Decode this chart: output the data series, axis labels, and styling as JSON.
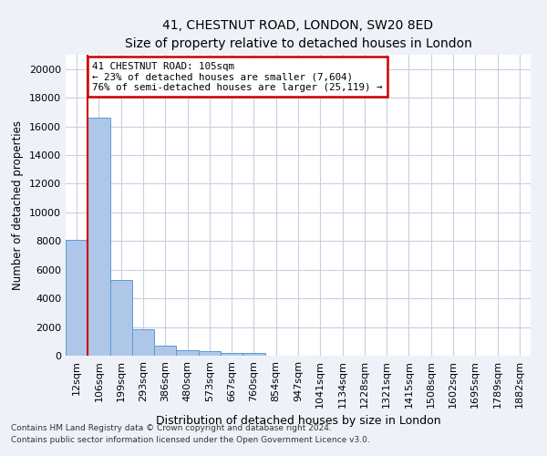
{
  "title": "41, CHESTNUT ROAD, LONDON, SW20 8ED",
  "subtitle": "Size of property relative to detached houses in London",
  "xlabel": "Distribution of detached houses by size in London",
  "ylabel": "Number of detached properties",
  "bar_labels": [
    "12sqm",
    "106sqm",
    "199sqm",
    "293sqm",
    "386sqm",
    "480sqm",
    "573sqm",
    "667sqm",
    "760sqm",
    "854sqm",
    "947sqm",
    "1041sqm",
    "1134sqm",
    "1228sqm",
    "1321sqm",
    "1415sqm",
    "1508sqm",
    "1602sqm",
    "1695sqm",
    "1789sqm",
    "1882sqm"
  ],
  "bar_values": [
    8100,
    16600,
    5300,
    1850,
    700,
    360,
    290,
    200,
    165,
    0,
    0,
    0,
    0,
    0,
    0,
    0,
    0,
    0,
    0,
    0,
    0
  ],
  "bar_color": "#aec6e8",
  "bar_edgecolor": "#5b9bd5",
  "annotation_text": "41 CHESTNUT ROAD: 105sqm\n← 23% of detached houses are smaller (7,604)\n76% of semi-detached houses are larger (25,119) →",
  "annotation_box_color": "#ffffff",
  "annotation_box_edgecolor": "#cc0000",
  "red_line_color": "#cc0000",
  "ylim": [
    0,
    21000
  ],
  "yticks": [
    0,
    2000,
    4000,
    6000,
    8000,
    10000,
    12000,
    14000,
    16000,
    18000,
    20000
  ],
  "footer1": "Contains HM Land Registry data © Crown copyright and database right 2024.",
  "footer2": "Contains public sector information licensed under the Open Government Licence v3.0.",
  "bg_color": "#eef2f8",
  "plot_bg_color": "#ffffff",
  "grid_color": "#c8d0df"
}
